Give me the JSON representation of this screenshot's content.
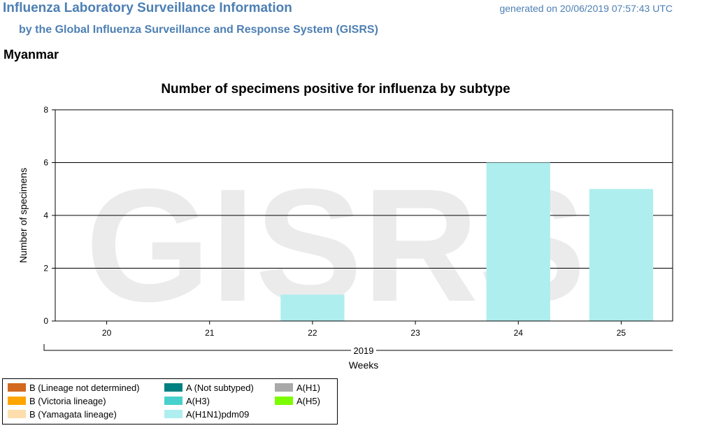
{
  "header": {
    "title": "Influenza Laboratory Surveillance Information",
    "subtitle": "by the Global Influenza Surveillance and Response System (GISRS)",
    "generated": "generated on 20/06/2019 07:57:43 UTC"
  },
  "country": "Myanmar",
  "watermark": "GISRS",
  "chart_data": {
    "type": "bar",
    "title": "Number of specimens positive for influenza by subtype",
    "ylabel": "Number of specimens",
    "xlabel": "Weeks",
    "year_label": "2019",
    "categories": [
      "20",
      "21",
      "22",
      "23",
      "24",
      "25"
    ],
    "ylim": [
      0,
      8
    ],
    "yticks": [
      0,
      2,
      4,
      6,
      8
    ],
    "grid": true,
    "stacked": true,
    "series": [
      {
        "name": "B (Lineage not determined)",
        "color": "#d2691e",
        "values": [
          0,
          0,
          0,
          0,
          0,
          0
        ]
      },
      {
        "name": "B (Victoria lineage)",
        "color": "#ffa500",
        "values": [
          0,
          0,
          0,
          0,
          0,
          0
        ]
      },
      {
        "name": "B (Yamagata lineage)",
        "color": "#ffdead",
        "values": [
          0,
          0,
          0,
          0,
          0,
          0
        ]
      },
      {
        "name": "A (Not subtyped)",
        "color": "#008080",
        "values": [
          0,
          0,
          0,
          0,
          0,
          0
        ]
      },
      {
        "name": "A(H3)",
        "color": "#48d1cc",
        "values": [
          0,
          0,
          0,
          0,
          0,
          0
        ]
      },
      {
        "name": "A(H1N1)pdm09",
        "color": "#afeeee",
        "values": [
          0,
          0,
          1,
          0,
          6,
          5
        ]
      },
      {
        "name": "A(H1)",
        "color": "#a9a9a9",
        "values": [
          0,
          0,
          0,
          0,
          0,
          0
        ]
      },
      {
        "name": "A(H5)",
        "color": "#7cfc00",
        "values": [
          0,
          0,
          0,
          0,
          0,
          0
        ]
      }
    ]
  }
}
